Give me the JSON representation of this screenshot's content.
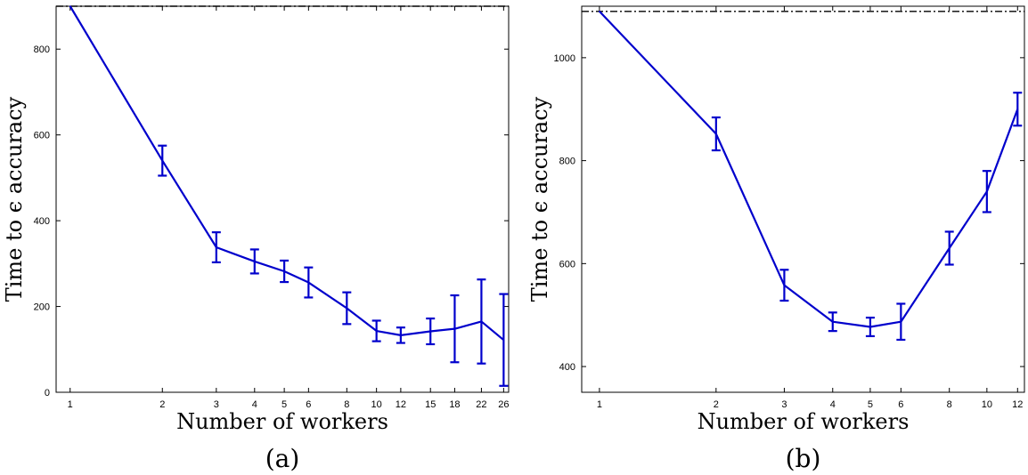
{
  "chart_data": [
    {
      "type": "line",
      "panel_label": "(a)",
      "xlabel": "Number of workers",
      "ylabel": "Time to ϵ accuracy",
      "x_scale": "log",
      "x_ticks": [
        1,
        2,
        3,
        4,
        5,
        6,
        8,
        10,
        12,
        15,
        18,
        22,
        26
      ],
      "xlim": [
        0.9,
        27
      ],
      "y_ticks": [
        0,
        200,
        400,
        600,
        800
      ],
      "ylim": [
        0,
        900
      ],
      "grid": false,
      "reference_line": {
        "style": "dash-dot",
        "y": 900
      },
      "series": [
        {
          "color": "#0000cc",
          "points": [
            {
              "x": 1,
              "y": 900,
              "err": null
            },
            {
              "x": 2,
              "y": 540,
              "err": 35
            },
            {
              "x": 3,
              "y": 338,
              "err": 35
            },
            {
              "x": 4,
              "y": 305,
              "err": 28
            },
            {
              "x": 5,
              "y": 282,
              "err": 25
            },
            {
              "x": 6,
              "y": 256,
              "err": 35
            },
            {
              "x": 8,
              "y": 196,
              "err": 37
            },
            {
              "x": 10,
              "y": 143,
              "err": 24
            },
            {
              "x": 12,
              "y": 133,
              "err": 18
            },
            {
              "x": 15,
              "y": 142,
              "err": 30
            },
            {
              "x": 18,
              "y": 148,
              "err": 78
            },
            {
              "x": 22,
              "y": 165,
              "err": 98
            },
            {
              "x": 26,
              "y": 122,
              "err": 107
            }
          ]
        }
      ]
    },
    {
      "type": "line",
      "panel_label": "(b)",
      "xlabel": "Number of workers",
      "ylabel": "Time to ϵ accuracy",
      "x_scale": "log",
      "x_ticks": [
        1,
        2,
        3,
        4,
        5,
        6,
        8,
        10,
        12
      ],
      "xlim": [
        0.9,
        12.5
      ],
      "y_ticks": [
        400,
        600,
        800,
        1000
      ],
      "ylim": [
        350,
        1100
      ],
      "grid": false,
      "reference_line": {
        "style": "dash-dot",
        "y": 1090
      },
      "series": [
        {
          "color": "#0000cc",
          "points": [
            {
              "x": 1,
              "y": 1090,
              "err": null
            },
            {
              "x": 2,
              "y": 852,
              "err": 32
            },
            {
              "x": 3,
              "y": 558,
              "err": 30
            },
            {
              "x": 4,
              "y": 487,
              "err": 18
            },
            {
              "x": 5,
              "y": 477,
              "err": 18
            },
            {
              "x": 6,
              "y": 487,
              "err": 35
            },
            {
              "x": 8,
              "y": 630,
              "err": 32
            },
            {
              "x": 10,
              "y": 740,
              "err": 40
            },
            {
              "x": 12,
              "y": 900,
              "err": 32
            }
          ]
        }
      ]
    }
  ]
}
